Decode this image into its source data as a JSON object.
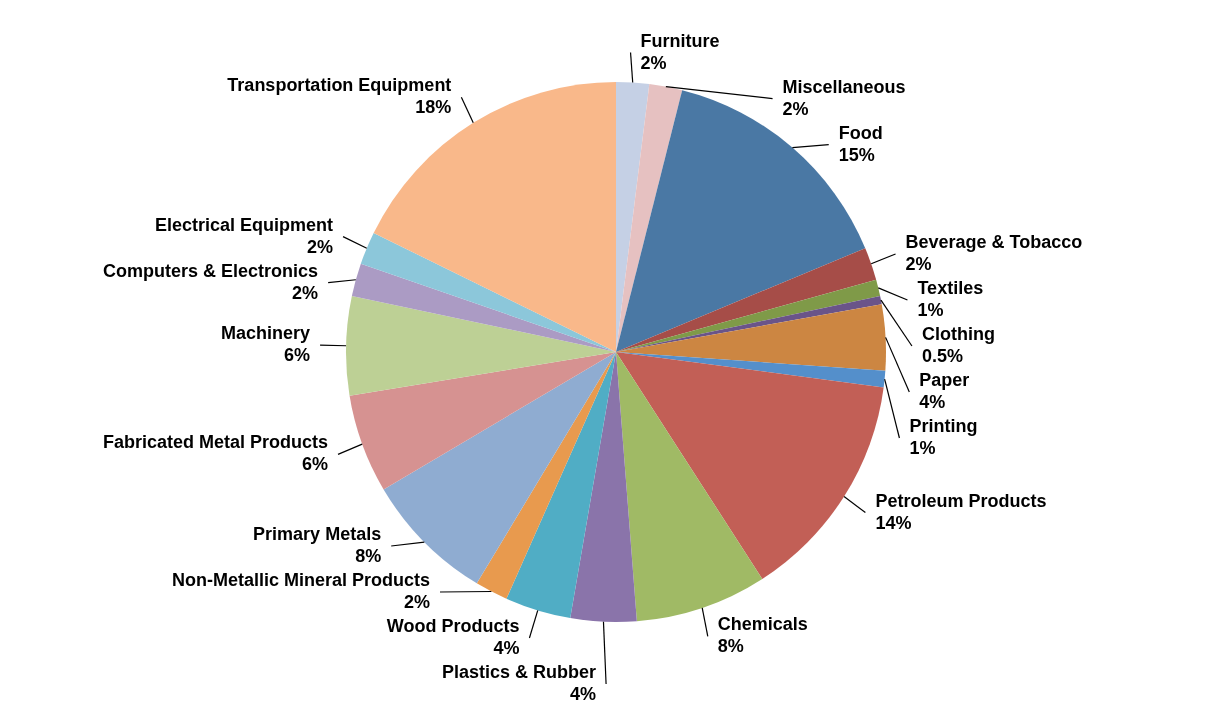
{
  "chart_data": {
    "type": "pie",
    "categories": [
      "Furniture",
      "Miscellaneous",
      "Food",
      "Beverage & Tobacco",
      "Textiles",
      "Clothing",
      "Paper",
      "Printing",
      "Petroleum Products",
      "Chemicals",
      "Plastics & Rubber",
      "Wood Products",
      "Non-Metallic Mineral Products",
      "Primary Metals",
      "Fabricated Metal Products",
      "Machinery",
      "Computers & Electronics",
      "Electrical Equipment",
      "Transportation Equipment"
    ],
    "values": [
      2,
      2,
      15,
      2,
      1,
      0.5,
      4,
      1,
      14,
      8,
      4,
      4,
      2,
      8,
      6,
      6,
      2,
      2,
      18
    ],
    "value_labels": [
      "2%",
      "2%",
      "15%",
      "2%",
      "1%",
      "0.5%",
      "4%",
      "1%",
      "14%",
      "8%",
      "4%",
      "4%",
      "2%",
      "8%",
      "6%",
      "6%",
      "2%",
      "2%",
      "18%"
    ],
    "colors": [
      "#c5d0e5",
      "#e6c1c1",
      "#4a78a4",
      "#a64d48",
      "#7f9a48",
      "#6a5489",
      "#cc8642",
      "#548fcb",
      "#c25f56",
      "#a0ba65",
      "#8a74aa",
      "#50adc5",
      "#e89a4e",
      "#8facd1",
      "#d69291",
      "#bdd095",
      "#ab9bc4",
      "#8cc7da",
      "#f9b88a"
    ]
  }
}
